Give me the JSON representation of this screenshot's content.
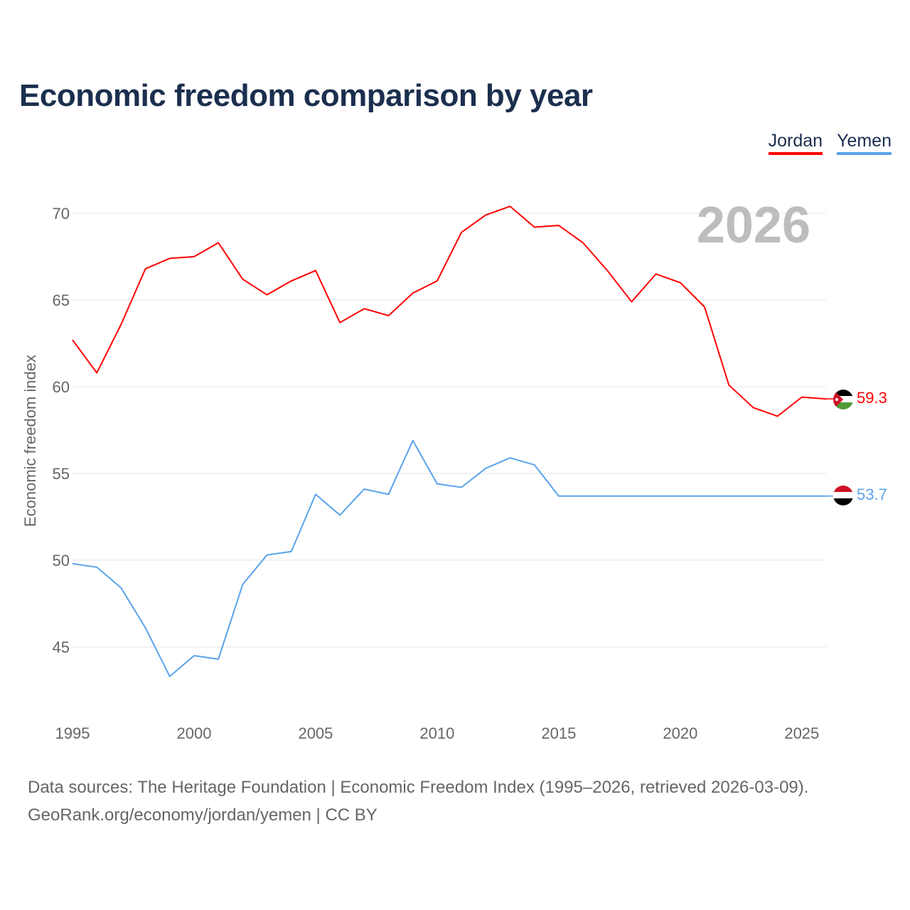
{
  "chart_data": {
    "type": "line",
    "title": "Economic freedom comparison by year",
    "ylabel": "Economic freedom index",
    "xlabel": "",
    "watermark_year": "2026",
    "x": [
      1995,
      1996,
      1997,
      1998,
      1999,
      2000,
      2001,
      2002,
      2003,
      2004,
      2005,
      2006,
      2007,
      2008,
      2009,
      2010,
      2011,
      2012,
      2013,
      2014,
      2015,
      2016,
      2017,
      2018,
      2019,
      2020,
      2021,
      2022,
      2023,
      2024,
      2025,
      2026
    ],
    "xlim": [
      1995,
      2026
    ],
    "ylim": [
      41.5,
      72
    ],
    "xticks": [
      1995,
      2000,
      2005,
      2010,
      2015,
      2020,
      2025
    ],
    "yticks": [
      45,
      50,
      55,
      60,
      65,
      70
    ],
    "grid": true,
    "legend_position": "top-right",
    "series": [
      {
        "name": "Jordan",
        "color": "#ff0000",
        "end_label": "59.3",
        "values": [
          62.7,
          60.8,
          63.6,
          66.8,
          67.4,
          67.5,
          68.3,
          66.2,
          65.3,
          66.1,
          66.7,
          63.7,
          64.5,
          64.1,
          65.4,
          66.1,
          68.9,
          69.9,
          70.4,
          69.2,
          69.3,
          68.3,
          66.7,
          64.9,
          66.5,
          66.0,
          64.6,
          60.1,
          58.8,
          58.3,
          59.4,
          59.3
        ]
      },
      {
        "name": "Yemen",
        "color": "#5ba3ea",
        "end_label": "53.7",
        "values": [
          49.8,
          49.6,
          48.4,
          46.1,
          43.3,
          44.5,
          44.3,
          48.6,
          50.3,
          50.5,
          53.8,
          52.6,
          54.1,
          53.8,
          56.9,
          54.4,
          54.2,
          55.3,
          55.9,
          55.5,
          53.7,
          53.7,
          53.7,
          53.7,
          53.7,
          53.7,
          53.7,
          53.7,
          53.7,
          53.7,
          53.7,
          53.7
        ]
      }
    ]
  },
  "footer": {
    "line1": "Data sources: The Heritage Foundation | Economic Freedom Index (1995–2026, retrieved 2026-03-09).",
    "line2": "GeoRank.org/economy/jordan/yemen | CC BY"
  }
}
